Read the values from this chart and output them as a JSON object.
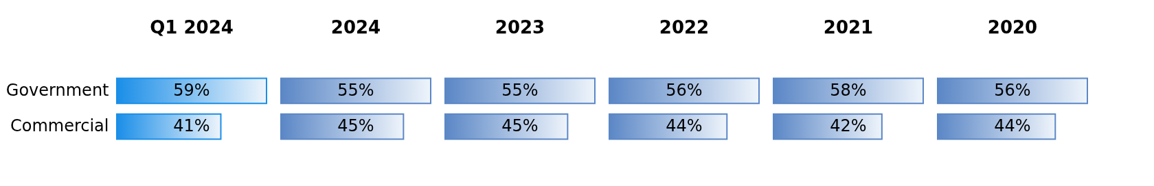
{
  "chart_data": [
    {
      "type": "bar",
      "orientation": "horizontal",
      "title": "Q1 2024",
      "categories": [
        "Government",
        "Commercial"
      ],
      "values": [
        59,
        41
      ],
      "value_labels": [
        "59%",
        "41%"
      ],
      "color": "#1a8ee8"
    },
    {
      "type": "bar",
      "orientation": "horizontal",
      "title": "2024",
      "categories": [
        null,
        null
      ],
      "values": [
        55,
        45
      ],
      "value_labels": [
        "55%",
        "45%"
      ],
      "color": "#5b87c6"
    },
    {
      "type": "bar",
      "orientation": "horizontal",
      "title": "2023",
      "categories": [
        null,
        null
      ],
      "values": [
        55,
        45
      ],
      "value_labels": [
        "55%",
        "45%"
      ],
      "color": "#5b87c6"
    },
    {
      "type": "bar",
      "orientation": "horizontal",
      "title": "2022",
      "categories": [
        null,
        null
      ],
      "values": [
        56,
        44
      ],
      "value_labels": [
        "56%",
        "44%"
      ],
      "color": "#5b87c6"
    },
    {
      "type": "bar",
      "orientation": "horizontal",
      "title": "2021",
      "categories": [
        null,
        null
      ],
      "values": [
        58,
        42
      ],
      "value_labels": [
        "58%",
        "42%"
      ],
      "color": "#5b87c6"
    },
    {
      "type": "bar",
      "orientation": "horizontal",
      "title": "2020",
      "categories": [
        null,
        null
      ],
      "values": [
        56,
        44
      ],
      "value_labels": [
        "56%",
        "44%"
      ],
      "color": "#5b87c6"
    }
  ]
}
